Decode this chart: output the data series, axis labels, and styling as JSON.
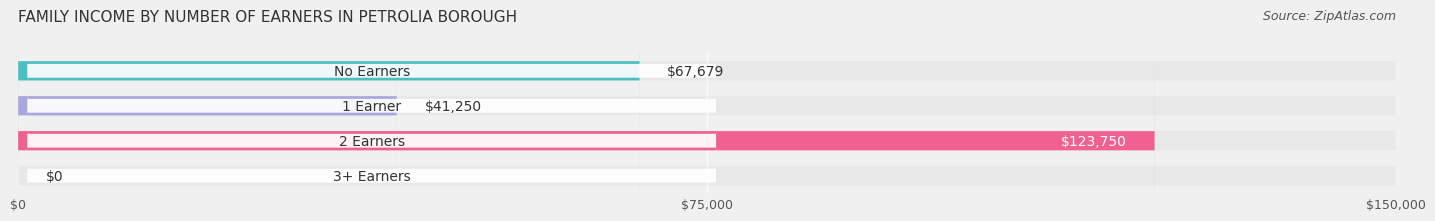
{
  "title": "FAMILY INCOME BY NUMBER OF EARNERS IN PETROLIA BOROUGH",
  "source": "Source: ZipAtlas.com",
  "categories": [
    "No Earners",
    "1 Earner",
    "2 Earners",
    "3+ Earners"
  ],
  "values": [
    67679,
    41250,
    123750,
    0
  ],
  "bar_colors": [
    "#4bbfbf",
    "#a8a8e0",
    "#f06090",
    "#f5c898"
  ],
  "label_colors": [
    "#333333",
    "#333333",
    "#ffffff",
    "#333333"
  ],
  "bg_color": "#f0f0f0",
  "bar_bg_color": "#e8e8e8",
  "xlim": [
    0,
    150000
  ],
  "xticks": [
    0,
    75000,
    150000
  ],
  "xtick_labels": [
    "$0",
    "$75,000",
    "$150,000"
  ],
  "value_labels": [
    "$67,679",
    "$41,250",
    "$123,750",
    "$0"
  ],
  "title_fontsize": 11,
  "source_fontsize": 9,
  "label_fontsize": 10,
  "bar_height": 0.55,
  "bar_gap": 0.12
}
